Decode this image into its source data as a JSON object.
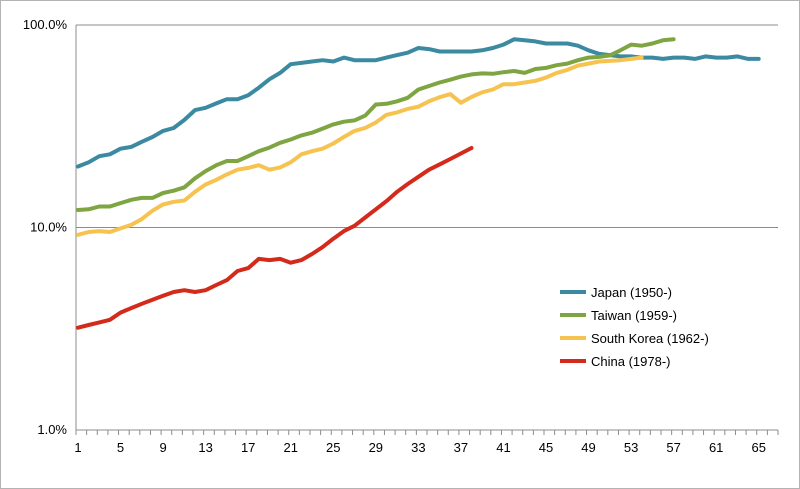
{
  "chart_data": {
    "type": "line",
    "title": "",
    "xlabel": "",
    "ylabel": "",
    "y_scale": "log",
    "ylim": [
      0.01,
      1.0
    ],
    "y_ticks": [
      {
        "value": 1.0,
        "label": "100.0%"
      },
      {
        "value": 0.1,
        "label": "10.0%"
      },
      {
        "value": 0.01,
        "label": "1.0%"
      }
    ],
    "xlim": [
      1,
      66
    ],
    "x_ticks": [
      1,
      5,
      9,
      13,
      17,
      21,
      25,
      29,
      33,
      37,
      41,
      45,
      49,
      53,
      57,
      61,
      65
    ],
    "grid": "horizontal",
    "legend_position": "lower-right",
    "series": [
      {
        "name": "Japan (1950-)",
        "color": "#3b8aa1",
        "values": [
          0.2,
          0.21,
          0.225,
          0.23,
          0.245,
          0.25,
          0.265,
          0.28,
          0.3,
          0.31,
          0.34,
          0.38,
          0.39,
          0.41,
          0.43,
          0.43,
          0.45,
          0.49,
          0.54,
          0.58,
          0.64,
          0.65,
          0.66,
          0.67,
          0.66,
          0.69,
          0.67,
          0.67,
          0.67,
          0.69,
          0.71,
          0.73,
          0.77,
          0.76,
          0.74,
          0.74,
          0.74,
          0.74,
          0.75,
          0.77,
          0.8,
          0.85,
          0.84,
          0.83,
          0.81,
          0.81,
          0.81,
          0.79,
          0.75,
          0.72,
          0.71,
          0.7,
          0.7,
          0.69,
          0.69,
          0.68,
          0.69,
          0.69,
          0.68,
          0.7,
          0.69,
          0.69,
          0.7,
          0.68,
          0.68
        ]
      },
      {
        "name": "Taiwan (1959-)",
        "color": "#7ea542",
        "values": [
          0.122,
          0.123,
          0.127,
          0.127,
          0.132,
          0.137,
          0.14,
          0.14,
          0.148,
          0.152,
          0.158,
          0.175,
          0.19,
          0.203,
          0.213,
          0.213,
          0.225,
          0.238,
          0.248,
          0.262,
          0.272,
          0.285,
          0.294,
          0.308,
          0.323,
          0.333,
          0.338,
          0.357,
          0.405,
          0.408,
          0.42,
          0.437,
          0.48,
          0.5,
          0.52,
          0.537,
          0.556,
          0.57,
          0.577,
          0.574,
          0.585,
          0.593,
          0.58,
          0.606,
          0.614,
          0.633,
          0.645,
          0.67,
          0.69,
          0.696,
          0.708,
          0.75,
          0.8,
          0.79,
          0.81,
          0.84,
          0.85
        ]
      },
      {
        "name": "South Korea (1962-)",
        "color": "#f6c350",
        "values": [
          0.092,
          0.095,
          0.096,
          0.095,
          0.099,
          0.103,
          0.11,
          0.121,
          0.13,
          0.134,
          0.136,
          0.15,
          0.163,
          0.172,
          0.183,
          0.193,
          0.197,
          0.203,
          0.193,
          0.198,
          0.21,
          0.23,
          0.238,
          0.245,
          0.26,
          0.28,
          0.3,
          0.31,
          0.33,
          0.36,
          0.37,
          0.385,
          0.395,
          0.42,
          0.44,
          0.456,
          0.413,
          0.441,
          0.465,
          0.48,
          0.51,
          0.51,
          0.52,
          0.53,
          0.55,
          0.58,
          0.6,
          0.63,
          0.645,
          0.66,
          0.665,
          0.67,
          0.68,
          0.69
        ]
      },
      {
        "name": "China (1978-)",
        "color": "#d42a1c",
        "values": [
          0.032,
          0.033,
          0.034,
          0.035,
          0.038,
          0.04,
          0.042,
          0.044,
          0.046,
          0.048,
          0.049,
          0.048,
          0.049,
          0.052,
          0.055,
          0.061,
          0.063,
          0.07,
          0.069,
          0.07,
          0.067,
          0.069,
          0.074,
          0.08,
          0.088,
          0.096,
          0.102,
          0.112,
          0.123,
          0.135,
          0.15,
          0.164,
          0.178,
          0.193,
          0.205,
          0.218,
          0.232,
          0.247
        ]
      }
    ]
  }
}
